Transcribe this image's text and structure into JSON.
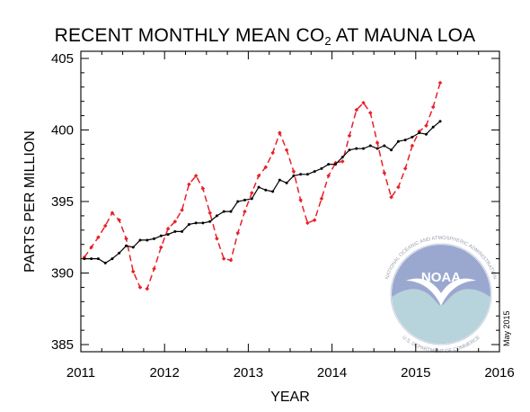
{
  "chart_data": {
    "type": "line",
    "title": {
      "main": "RECENT MONTHLY MEAN CO",
      "subscript": "2",
      "rest": " AT MAUNA LOA"
    },
    "xlabel": "YEAR",
    "ylabel": "PARTS PER MILLION",
    "xlim": [
      2011,
      2016
    ],
    "ylim": [
      384.5,
      405.5
    ],
    "x_ticks": [
      2011,
      2012,
      2013,
      2014,
      2015,
      2016
    ],
    "y_ticks": [
      385,
      390,
      395,
      400,
      405
    ],
    "grid": false,
    "date_stamp": "May 2015",
    "logo": {
      "text": "NOAA",
      "ring_top": "NATIONAL OCEANIC AND ATMOSPHERIC ADMINISTRATION",
      "ring_bottom": "U.S. DEPARTMENT OF COMMERCE"
    },
    "colors": {
      "monthly_mean": "#e8202a",
      "trend": "#000000",
      "logo_dark": "#9aa8d0",
      "logo_light": "#b7d3dc"
    },
    "series": [
      {
        "key": "monthly_mean",
        "style": "dashed",
        "x": [
          2011.042,
          2011.125,
          2011.208,
          2011.292,
          2011.375,
          2011.458,
          2011.542,
          2011.625,
          2011.708,
          2011.792,
          2011.875,
          2011.958,
          2012.042,
          2012.125,
          2012.208,
          2012.292,
          2012.375,
          2012.458,
          2012.542,
          2012.625,
          2012.708,
          2012.792,
          2012.875,
          2012.958,
          2013.042,
          2013.125,
          2013.208,
          2013.292,
          2013.375,
          2013.458,
          2013.542,
          2013.625,
          2013.708,
          2013.792,
          2013.875,
          2013.958,
          2014.042,
          2014.125,
          2014.208,
          2014.292,
          2014.375,
          2014.458,
          2014.542,
          2014.625,
          2014.708,
          2014.792,
          2014.875,
          2014.958,
          2015.042,
          2015.125,
          2015.208,
          2015.292
        ],
        "values": [
          391.1,
          391.8,
          392.5,
          393.3,
          394.2,
          393.7,
          392.4,
          390.1,
          389.0,
          388.9,
          390.3,
          391.8,
          393.1,
          393.6,
          394.4,
          396.2,
          396.8,
          395.9,
          394.2,
          392.4,
          391.0,
          390.9,
          392.8,
          394.3,
          395.6,
          396.8,
          397.4,
          398.4,
          399.8,
          398.6,
          397.1,
          395.1,
          393.5,
          393.7,
          395.2,
          396.8,
          397.7,
          397.8,
          399.6,
          401.4,
          401.9,
          401.2,
          399.1,
          397.0,
          395.3,
          396.0,
          397.3,
          398.9,
          399.9,
          400.3,
          401.6,
          403.3
        ]
      },
      {
        "key": "trend",
        "style": "solid",
        "x": [
          2011.042,
          2011.125,
          2011.208,
          2011.292,
          2011.375,
          2011.458,
          2011.542,
          2011.625,
          2011.708,
          2011.792,
          2011.875,
          2011.958,
          2012.042,
          2012.125,
          2012.208,
          2012.292,
          2012.375,
          2012.458,
          2012.542,
          2012.625,
          2012.708,
          2012.792,
          2012.875,
          2012.958,
          2013.042,
          2013.125,
          2013.208,
          2013.292,
          2013.375,
          2013.458,
          2013.542,
          2013.625,
          2013.708,
          2013.792,
          2013.875,
          2013.958,
          2014.042,
          2014.125,
          2014.208,
          2014.292,
          2014.375,
          2014.458,
          2014.542,
          2014.625,
          2014.708,
          2014.792,
          2014.875,
          2014.958,
          2015.042,
          2015.125,
          2015.208,
          2015.292
        ],
        "values": [
          391.0,
          391.0,
          391.0,
          390.7,
          391.0,
          391.4,
          391.9,
          391.8,
          392.3,
          392.3,
          392.4,
          392.6,
          392.7,
          392.9,
          392.9,
          393.4,
          393.5,
          393.5,
          393.6,
          394.0,
          394.3,
          394.3,
          395.0,
          395.1,
          395.2,
          396.0,
          395.8,
          395.7,
          396.5,
          396.3,
          396.8,
          396.9,
          396.9,
          397.1,
          397.3,
          397.6,
          397.6,
          398.1,
          398.6,
          398.7,
          398.7,
          398.9,
          398.7,
          398.9,
          398.6,
          399.2,
          399.3,
          399.5,
          399.8,
          399.7,
          400.2,
          400.6
        ]
      }
    ]
  }
}
